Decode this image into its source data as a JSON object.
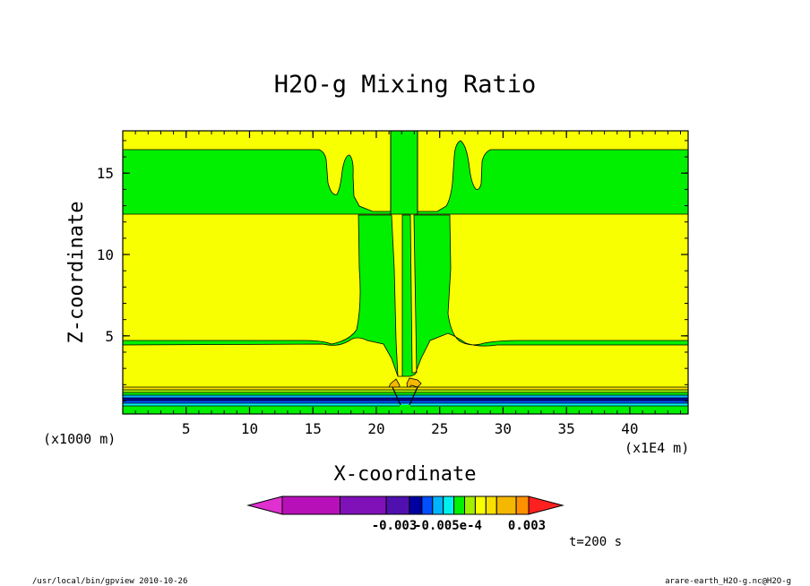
{
  "colors": {
    "yellow": "#f8ff00",
    "green": "#00f000",
    "orange": "#f5b800",
    "outline": "#000000"
  },
  "chart_data": {
    "type": "heatmap",
    "title": "H2O-g Mixing Ratio",
    "xlabel": "X-coordinate",
    "ylabel": "Z-coordinate",
    "x_unit_left": "(x1000 m)",
    "x_unit_right": "(x1E4 m)",
    "xlim": [
      0,
      44.6
    ],
    "ylim": [
      0.2,
      17.6
    ],
    "x_ticks": [
      5,
      10,
      15,
      20,
      25,
      30,
      35,
      40
    ],
    "y_ticks": [
      5,
      10,
      15
    ],
    "x_tick_labels": [
      "5",
      "10",
      "15",
      "20",
      "25",
      "30",
      "35",
      "40"
    ],
    "y_tick_labels": [
      "5",
      "10",
      "15"
    ],
    "colorbar": {
      "colors": [
        "#e030d0",
        "#b810b8",
        "#8010b8",
        "#5010b0",
        "#0000a0",
        "#0050ff",
        "#00b4ff",
        "#00f0f0",
        "#00f000",
        "#a0f000",
        "#f8ff00",
        "#f8e000",
        "#f5b800",
        "#ff9000",
        "#ff6000",
        "#ff2020"
      ],
      "labels": [
        "-0.003",
        "-0.005e-4",
        "0.003"
      ]
    },
    "time_label": "t=200 s",
    "bands": [
      {
        "z_top": 17.6,
        "z_bottom": 16.7,
        "value": "yellow"
      },
      {
        "z_top": 16.7,
        "z_bottom": 12.7,
        "value": "green"
      },
      {
        "z_top": 12.7,
        "z_bottom": 4.85,
        "value": "yellow"
      },
      {
        "z_top": 4.85,
        "z_bottom": 4.5,
        "value": "green"
      },
      {
        "z_top": 4.5,
        "z_bottom": 1.9,
        "value": "yellow"
      },
      {
        "z_top": 1.9,
        "z_bottom": 0.2,
        "value": "layered"
      }
    ]
  },
  "footer": {
    "left": "/usr/local/bin/gpview  2010-10-26",
    "right": "arare-earth_H2O-g.nc@H2O-g"
  }
}
